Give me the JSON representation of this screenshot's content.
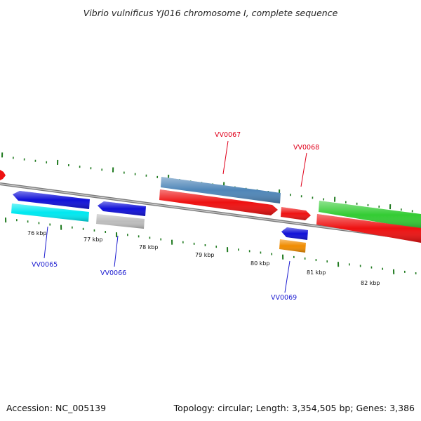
{
  "title": "Vibrio vulnificus YJ016 chromosome I, complete sequence",
  "footer": {
    "accession": "Accession: NC_005139",
    "summary": "Topology: circular; Length: 3,354,505 bp; Genes: 3,386"
  },
  "colors": {
    "backbone": "#8a8a8a",
    "tick": "#1f7a1f",
    "forward_label": "#e0001b",
    "reverse_label": "#1a1ad0"
  },
  "ticks": [
    "76 kbp",
    "77 kbp",
    "78 kbp",
    "79 kbp",
    "80 kbp",
    "81 kbp",
    "82 kbp"
  ],
  "gene_labels": [
    {
      "name": "VV0065",
      "strand": "reverse",
      "color": "#1a1ad0"
    },
    {
      "name": "VV0066",
      "strand": "reverse",
      "color": "#1a1ad0"
    },
    {
      "name": "VV0067",
      "strand": "forward",
      "color": "#e0001b"
    },
    {
      "name": "VV0068",
      "strand": "forward",
      "color": "#e0001b"
    },
    {
      "name": "VV0069",
      "strand": "reverse",
      "color": "#1a1ad0"
    }
  ],
  "feature_colors": {
    "red": "#ee1111",
    "blue": "#1010d8",
    "cyan": "#00e8f0",
    "gray": "#bdbdbd",
    "steelblue": "#4f86b8",
    "green": "#33cc33",
    "orange": "#f08c00"
  }
}
